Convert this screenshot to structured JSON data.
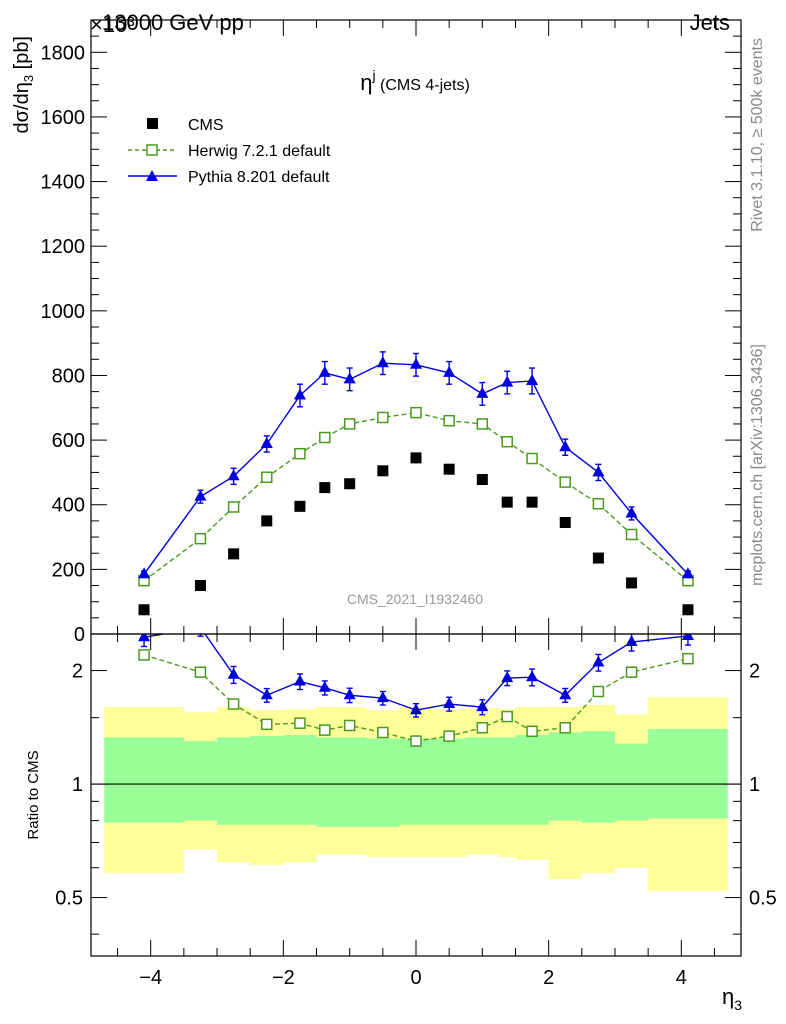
{
  "header": {
    "left": "13000 GeV pp",
    "right": "Jets",
    "exponent_label": "×10³"
  },
  "side_labels": {
    "rivet": "Rivet 3.1.10, ≥ 500k events",
    "mcplots": "mcplots.cern.ch [arXiv:1306.3436]"
  },
  "watermark": "CMS_2021_I1932460",
  "title_main": "η",
  "title_sup": "j",
  "title_rest": " (CMS 4-jets)",
  "ylabel_top": "dσ/dη",
  "ylabel_top_sub": "3",
  "ylabel_top_unit": " [pb]",
  "ylabel_bottom": "Ratio to CMS",
  "xlabel": "η",
  "xlabel_sub": "3",
  "legend": {
    "cms": "CMS",
    "herwig": "Herwig 7.2.1 default",
    "pythia": "Pythia 8.201 default"
  },
  "colors": {
    "cms": "#000000",
    "herwig": "#4a9a1e",
    "pythia": "#0000dd",
    "band_outer": "#ffff99",
    "band_inner": "#99ff99"
  },
  "chart_data": [
    {
      "type": "scatter",
      "panel": "main",
      "x_bin_edges": [
        -4.7,
        -3.5,
        -3.0,
        -2.5,
        -2.0,
        -1.5,
        -1.25,
        -0.75,
        -0.25,
        0.25,
        0.75,
        1.25,
        1.5,
        2.0,
        2.5,
        3.0,
        3.5,
        4.7
      ],
      "x": [
        -4.1,
        -3.25,
        -2.75,
        -2.25,
        -1.75,
        -1.375,
        -1.0,
        -0.5,
        0.0,
        0.5,
        1.0,
        1.375,
        1.75,
        2.25,
        2.75,
        3.25,
        4.1
      ],
      "series": [
        {
          "name": "CMS",
          "values": [
            75,
            150,
            248,
            350,
            395,
            453,
            465,
            505,
            545,
            510,
            478,
            408,
            408,
            345,
            235,
            158,
            75
          ]
        },
        {
          "name": "Herwig 7.2.1 default",
          "values": [
            165,
            295,
            393,
            485,
            558,
            608,
            650,
            670,
            685,
            660,
            650,
            595,
            543,
            470,
            403,
            308,
            165
          ],
          "errors": [
            6,
            7,
            8,
            9,
            9,
            10,
            10,
            10,
            10,
            10,
            10,
            10,
            9,
            9,
            8,
            7,
            6
          ]
        },
        {
          "name": "Pythia 8.201 default",
          "values": [
            185,
            425,
            488,
            588,
            738,
            808,
            788,
            838,
            833,
            808,
            743,
            778,
            783,
            578,
            500,
            373,
            185
          ],
          "errors": [
            10,
            20,
            25,
            25,
            35,
            35,
            35,
            35,
            35,
            35,
            35,
            35,
            40,
            25,
            25,
            20,
            10
          ]
        }
      ],
      "ylabel": "dσ/dη₃ [pb]",
      "ylim": [
        0,
        1900
      ],
      "xlim": [
        -4.9,
        4.9
      ],
      "yticks": [
        0,
        200,
        400,
        600,
        800,
        1000,
        1200,
        1400,
        1600,
        1800
      ],
      "xticks": [
        -4,
        -2,
        0,
        2,
        4
      ],
      "legend_position": "top-left"
    },
    {
      "type": "scatter",
      "panel": "ratio",
      "ylabel": "Ratio to CMS",
      "xlabel": "η₃",
      "y_scale": "log",
      "ylim": [
        0.35,
        2.5
      ],
      "yticks": [
        0.5,
        1,
        2
      ],
      "x": [
        -4.1,
        -3.25,
        -2.75,
        -2.25,
        -1.75,
        -1.375,
        -1.0,
        -0.5,
        0.0,
        0.5,
        1.0,
        1.375,
        1.75,
        2.25,
        2.75,
        3.25,
        4.1
      ],
      "series": [
        {
          "name": "Herwig 7.2.1 default",
          "values": [
            2.2,
            1.98,
            1.63,
            1.44,
            1.45,
            1.39,
            1.43,
            1.37,
            1.3,
            1.34,
            1.41,
            1.51,
            1.38,
            1.41,
            1.76,
            1.98,
            2.15
          ]
        },
        {
          "name": "Pythia 8.201 default",
          "values": [
            2.45,
            2.6,
            1.95,
            1.72,
            1.87,
            1.8,
            1.72,
            1.69,
            1.57,
            1.63,
            1.6,
            1.91,
            1.92,
            1.72,
            2.1,
            2.38,
            2.47
          ]
        }
      ],
      "band_inner_upper": [
        1.33,
        1.3,
        1.33,
        1.34,
        1.35,
        1.33,
        1.33,
        1.32,
        1.32,
        1.32,
        1.33,
        1.33,
        1.35,
        1.37,
        1.38,
        1.28,
        1.4
      ],
      "band_inner_lower": [
        0.79,
        0.8,
        0.78,
        0.78,
        0.78,
        0.77,
        0.77,
        0.77,
        0.78,
        0.78,
        0.78,
        0.78,
        0.78,
        0.8,
        0.79,
        0.8,
        0.81
      ],
      "band_outer_upper": [
        1.6,
        1.55,
        1.6,
        1.57,
        1.58,
        1.6,
        1.6,
        1.57,
        1.6,
        1.58,
        1.59,
        1.58,
        1.6,
        1.6,
        1.62,
        1.53,
        1.7
      ],
      "band_outer_lower": [
        0.58,
        0.67,
        0.62,
        0.61,
        0.62,
        0.65,
        0.65,
        0.64,
        0.64,
        0.64,
        0.65,
        0.64,
        0.63,
        0.56,
        0.58,
        0.6,
        0.52
      ],
      "reference_line": 1
    }
  ]
}
